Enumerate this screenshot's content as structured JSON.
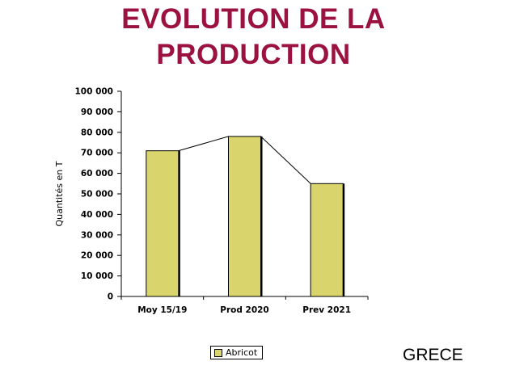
{
  "title_line1": "EVOLUTION DE LA",
  "title_line2": "PRODUCTION",
  "country": "GRECE",
  "chart_data": {
    "type": "bar",
    "categories": [
      "Moy 15/19",
      "Prod 2020",
      "Prev 2021"
    ],
    "series": [
      {
        "name": "Abricot",
        "values": [
          71000,
          78000,
          55000
        ],
        "color": "#d9d46b"
      }
    ],
    "connector_line": true,
    "ylabel": "Quantités en T",
    "xlabel": "",
    "ylim": [
      0,
      100000
    ],
    "yticks": [
      "0",
      "10 000",
      "20 000",
      "30 000",
      "40 000",
      "50 000",
      "60 000",
      "70 000",
      "80 000",
      "90 000",
      "100 000"
    ],
    "grid": false,
    "legend_position": "bottom"
  }
}
